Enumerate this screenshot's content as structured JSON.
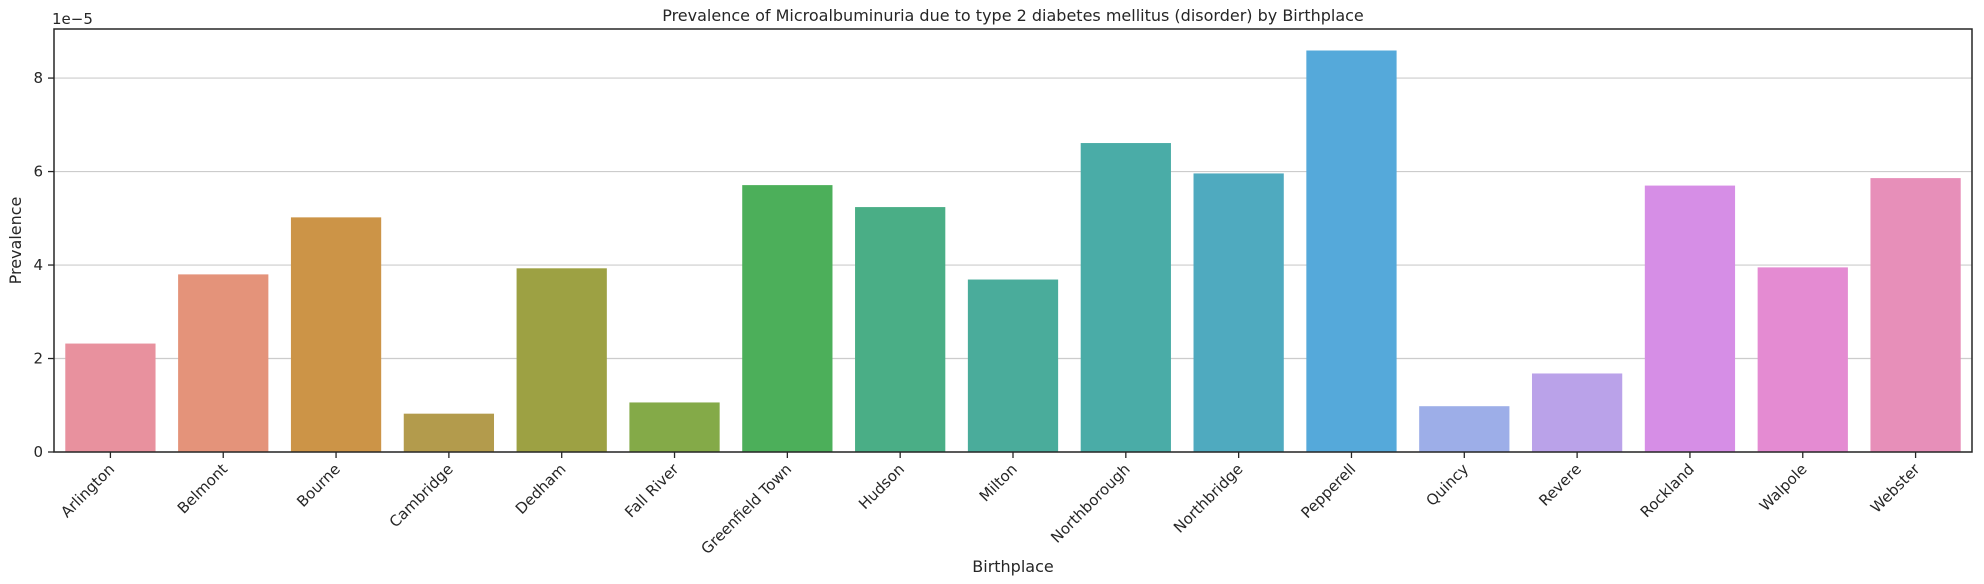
{
  "chart_data": {
    "type": "bar",
    "title": "Prevalence of Microalbuminuria due to type 2 diabetes mellitus (disorder) by Birthplace",
    "xlabel": "Birthplace",
    "ylabel": "Prevalence",
    "scale_label": "1e−5",
    "categories": [
      "Arlington",
      "Belmont",
      "Bourne",
      "Cambridge",
      "Dedham",
      "Fall River",
      "Greenfield Town",
      "Hudson",
      "Milton",
      "Northborough",
      "Northbridge",
      "Pepperell",
      "Quincy",
      "Revere",
      "Rockland",
      "Walpole",
      "Webster"
    ],
    "values": [
      2.32e-05,
      3.8e-05,
      5.02e-05,
      8.2e-06,
      3.93e-05,
      1.06e-05,
      5.71e-05,
      5.24e-05,
      3.69e-05,
      6.61e-05,
      5.96e-05,
      8.59e-05,
      9.8e-06,
      1.68e-05,
      5.7e-05,
      3.95e-05,
      5.86e-05
    ],
    "colors": [
      "#e8919e",
      "#e4937a",
      "#cc9447",
      "#b39b4c",
      "#9da143",
      "#84aa48",
      "#4caf5a",
      "#4aae86",
      "#4aac9b",
      "#4aaca7",
      "#4faabf",
      "#55a9da",
      "#9daee8",
      "#baa2e9",
      "#d68ee6",
      "#e48bd2",
      "#e78fb9"
    ],
    "ylim": [
      0,
      9.05e-05
    ],
    "yticks": [
      0,
      2e-05,
      4e-05,
      6e-05,
      8e-05
    ],
    "ytick_labels": [
      "0",
      "2",
      "4",
      "6",
      "8"
    ],
    "grid": "horizontal",
    "legend": "none"
  }
}
